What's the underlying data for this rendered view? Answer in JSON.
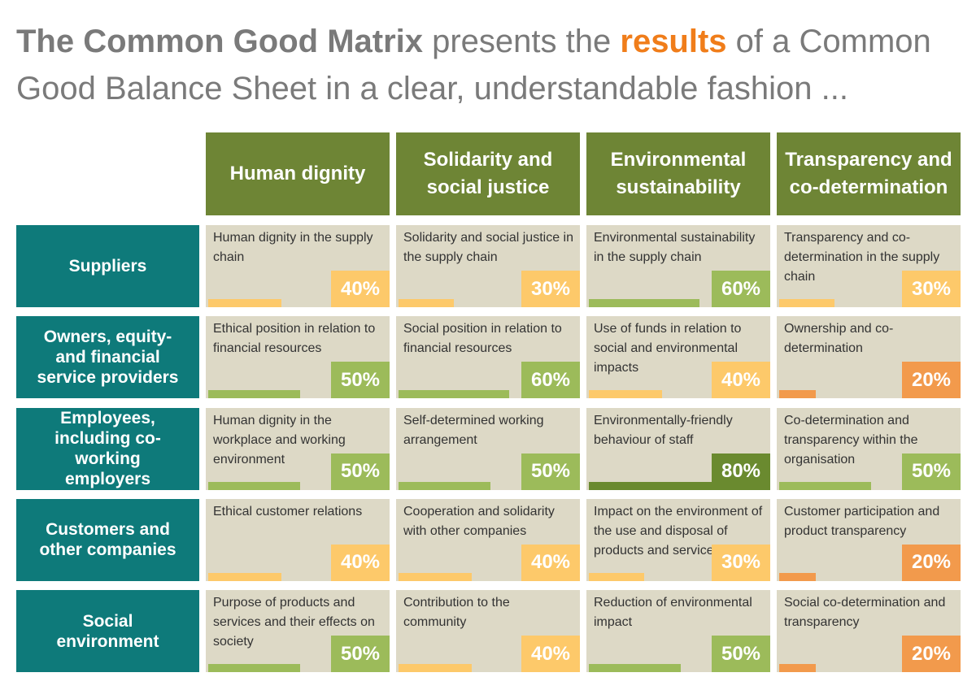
{
  "title": {
    "parts": [
      "The Common Good Matrix",
      " presents the ",
      "results",
      " of a Common Good Balance Sheet in a clear, understandable fashion ..."
    ]
  },
  "matrix": {
    "columns": [
      "Human dignity",
      "Solidarity and social justice",
      "Environmental sustainability",
      "Transparency and co-determination"
    ],
    "rows": [
      {
        "label": "Suppliers",
        "cells": [
          {
            "text": "Human dignity in the supply chain",
            "value": 40,
            "value_label": "40%",
            "color": "#fdc96a"
          },
          {
            "text": "Solidarity and social justice in the supply chain",
            "value": 30,
            "value_label": "30%",
            "color": "#fdc96a"
          },
          {
            "text": "Environmental sustainability in the supply chain",
            "value": 60,
            "value_label": "60%",
            "color": "#9cbb5a"
          },
          {
            "text": "Transparency and co-determination in the supply chain",
            "value": 30,
            "value_label": "30%",
            "color": "#fdc96a"
          }
        ]
      },
      {
        "label": "Owners, equity- and financial service providers",
        "cells": [
          {
            "text": "Ethical position in relation to financial resources",
            "value": 50,
            "value_label": "50%",
            "color": "#9cbb5a"
          },
          {
            "text": "Social position in relation to financial resources",
            "value": 60,
            "value_label": "60%",
            "color": "#9cbb5a"
          },
          {
            "text": "Use of funds in relation to social and environmental impacts",
            "value": 40,
            "value_label": "40%",
            "color": "#fdc96a"
          },
          {
            "text": "Ownership and co-determination",
            "value": 20,
            "value_label": "20%",
            "color": "#f29a4c"
          }
        ]
      },
      {
        "label": "Employees, including co-working employers",
        "cells": [
          {
            "text": "Human dignity in the workplace and working environment",
            "value": 50,
            "value_label": "50%",
            "color": "#9cbb5a"
          },
          {
            "text": "Self-determined working arrangement",
            "value": 50,
            "value_label": "50%",
            "color": "#9cbb5a"
          },
          {
            "text": "Environmentally-friendly behaviour of staff",
            "value": 80,
            "value_label": "80%",
            "color": "#6a8a2f"
          },
          {
            "text": "Co-determination and transparency within the organisation",
            "value": 50,
            "value_label": "50%",
            "color": "#9cbb5a"
          }
        ]
      },
      {
        "label": "Customers and other companies",
        "cells": [
          {
            "text": "Ethical customer relations",
            "value": 40,
            "value_label": "40%",
            "color": "#fdc96a"
          },
          {
            "text": "Cooperation and solidarity with other companies",
            "value": 40,
            "value_label": "40%",
            "color": "#fdc96a"
          },
          {
            "text": "Impact on the environment of the use and disposal of products and services",
            "value": 30,
            "value_label": "30%",
            "color": "#fdc96a"
          },
          {
            "text": "Customer participation and product transparency",
            "value": 20,
            "value_label": "20%",
            "color": "#f29a4c"
          }
        ]
      },
      {
        "label": "Social environment",
        "cells": [
          {
            "text": "Purpose of products and services and their effects on society",
            "value": 50,
            "value_label": "50%",
            "color": "#9cbb5a"
          },
          {
            "text": "Contribution to the community",
            "value": 40,
            "value_label": "40%",
            "color": "#fdc96a"
          },
          {
            "text": "Reduction of environmental impact",
            "value": 50,
            "value_label": "50%",
            "color": "#9cbb5a"
          },
          {
            "text": "Social co-determination and transparency",
            "value": 20,
            "value_label": "20%",
            "color": "#f29a4c"
          }
        ]
      }
    ]
  }
}
